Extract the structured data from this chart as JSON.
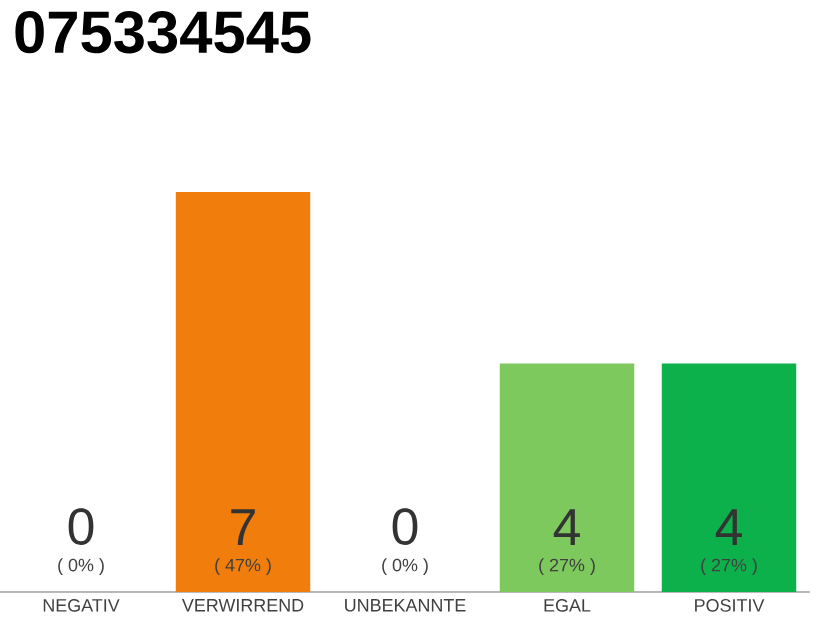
{
  "chart_data": {
    "type": "bar",
    "title": "075334545",
    "categories": [
      "NEGATIV",
      "VERWIRREND",
      "UNBEKANNTE",
      "EGAL",
      "POSITIV"
    ],
    "values": [
      0,
      7,
      0,
      4,
      4
    ],
    "colors": [
      "#eeeeee",
      "#f07d0c",
      "#eeeeee",
      "#7dc95e",
      "#0db14b"
    ],
    "value_labels": [
      "0",
      "7",
      "0",
      "4",
      "4"
    ],
    "annotations": [
      "( 0% )",
      "( 47% )",
      "( 0% )",
      "( 27% )",
      "( 27% )"
    ]
  }
}
